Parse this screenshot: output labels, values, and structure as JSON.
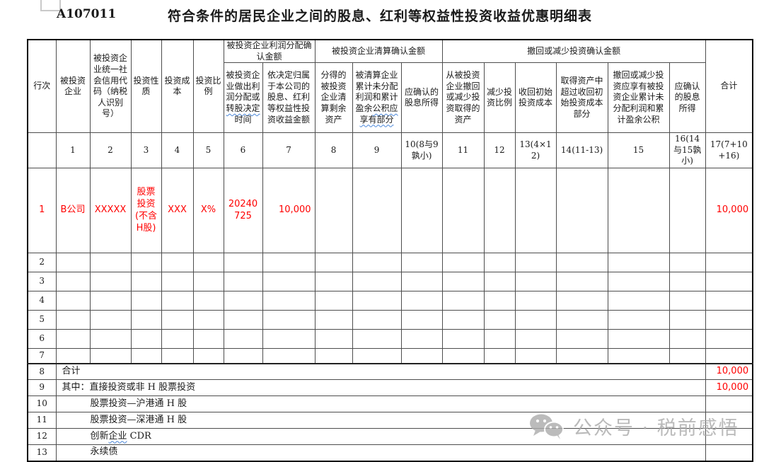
{
  "page": {
    "form_code": "A107011",
    "title": "符合条件的居民企业之间的股息、红利等权益性投资收益优惠明细表"
  },
  "colors": {
    "accent_red": "#ff0000",
    "wavy_blue": "#4a86d8",
    "watermark_gray": "#aaaaaa"
  },
  "table": {
    "header": {
      "row_col": "行次",
      "col1": "被投资企业",
      "col2": "被投资企业统一社会信用代码（纳税人识别号）",
      "col3": "投资性质",
      "col4": "投资成本",
      "col5": "投资比例",
      "group_profit": "被投资企业利润分配确认金额",
      "group_liquidation": "被投资企业清算确认金额",
      "group_withdraw": "撤回或减少投资确认金额",
      "total": "合计",
      "col6_pre": "被投资企业做出利润分配或",
      "col6_wavy": "转股决定",
      "col6_post": "时间",
      "col7": "依决定归属于本公司的股息、红利等权益性投资收益金额",
      "col8": "分得的被投资企业清算剩余资产",
      "col9_pre": "被清算企业累计未分配利润和累计盈余",
      "col9_wavy": "公积应享有部分",
      "col10": "应确认的股息所得",
      "col11": "从被投资企业撤回或减少投资取得的资产",
      "col12": "减少投资比例",
      "col13": "收回初始投资成本",
      "col14": "取得资产中超过收回初始投资成本部分",
      "col15": "撤回或减少投资应享有被投资企业累计未分配利润和累计盈余公积",
      "col16": "应确认的股息所得",
      "nums": [
        "1",
        "2",
        "3",
        "4",
        "5",
        "6",
        "7",
        "8",
        "9",
        "10(8与9孰小)",
        "11",
        "12",
        "13(4×12)",
        "14(11-13)",
        "15",
        "16(14与15孰小)",
        "17(7+10+16)"
      ]
    },
    "rows": {
      "row1": {
        "num": "1",
        "company": "B公司",
        "code": "XXXXX",
        "nature": "股票投资 (不含H股)",
        "cost": "XXX",
        "ratio": "X%",
        "date": "20240725",
        "amount": "10,000",
        "total": "10,000"
      },
      "empty": [
        "2",
        "3",
        "4",
        "5",
        "6",
        "7"
      ],
      "summary": [
        {
          "num": "8",
          "label": "合计",
          "indent": false,
          "total": "10,000"
        },
        {
          "num": "9",
          "label": "其中：直接投资或非 H 股票投资",
          "indent": false,
          "total": "10,000"
        },
        {
          "num": "10",
          "label": "股票投资—沪港通 H 股",
          "indent": true,
          "total": ""
        },
        {
          "num": "11",
          "label": "股票投资—深港通 H 股",
          "indent": true,
          "total": ""
        },
        {
          "num": "12",
          "pre": "创新",
          "wavy": "企业",
          "post": " CDR",
          "indent": true,
          "total": ""
        },
        {
          "num": "13",
          "label": "永续债",
          "indent": true,
          "total": ""
        }
      ]
    }
  },
  "watermark": {
    "icon": "wechat-icon",
    "text": "公众号 · 税前感悟"
  }
}
